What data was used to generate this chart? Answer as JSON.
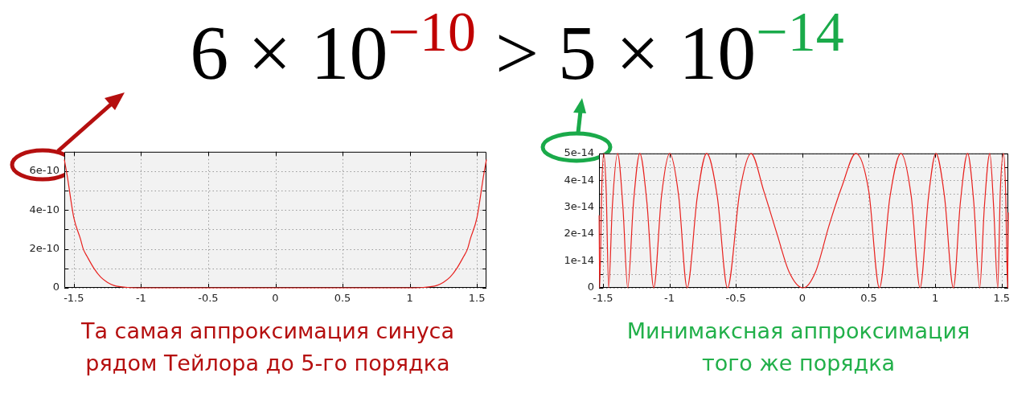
{
  "chart_data": [
    {
      "type": "line",
      "title": "6 × 10$^{−10}$ > 5 × 10$^{−14}$",
      "annotations": [
        "Та самая аппроксимация синуса рядом Тейлора до 5-го порядка"
      ],
      "series": [
        {
          "color": "#e8221f",
          "x": [
            -1.5708,
            -1.55,
            -1.5,
            -1.45,
            -1.43,
            -1.4,
            -1.35,
            -1.3,
            -1.25,
            -1.2,
            -1.1,
            -1.0,
            0,
            1.0,
            1.1,
            1.2,
            1.25,
            1.3,
            1.35,
            1.4,
            1.43,
            1.45,
            1.5,
            1.55,
            1.5708
          ],
          "values": [
            6.6e-10,
            5.8e-10,
            3.6e-10,
            2.5e-10,
            2e-10,
            1.6e-10,
            1e-10,
            5.5e-11,
            2.8e-11,
            1.2e-11,
            2e-12,
            0,
            0,
            0,
            2e-12,
            1.2e-11,
            2.8e-11,
            5.5e-11,
            1e-10,
            1.6e-10,
            2e-10,
            2.5e-10,
            3.6e-10,
            5.8e-10,
            6.6e-10
          ]
        }
      ],
      "xlim": [
        -1.5708,
        1.5708
      ],
      "xticks": [
        -1.5,
        -1,
        -0.5,
        0,
        0.5,
        1,
        1.5
      ],
      "ylim": [
        0,
        7e-10
      ],
      "yticks": [
        0,
        {
          "value": 1e-10,
          "label": null
        },
        2e-10,
        {
          "value": 3e-10,
          "label": null
        },
        4e-10,
        {
          "value": 5e-10,
          "label": null
        },
        6e-10
      ],
      "grid": true,
      "marker": "none",
      "line_style": "solid"
    },
    {
      "type": "line",
      "annotations": [
        "Минимаксная аппроксимация того же порядка"
      ],
      "series": [
        {
          "color": "#e8221f",
          "x": [
            -1.529,
            -1.525,
            -1.51,
            -1.494,
            -1.476,
            -1.457,
            -1.43,
            -1.39,
            -1.35,
            -1.314,
            -1.27,
            -1.223,
            -1.17,
            -1.118,
            -1.06,
            -0.998,
            -0.93,
            -0.867,
            -0.79,
            -0.72,
            -0.64,
            -0.563,
            -0.47,
            -0.386,
            -0.29,
            -0.19,
            -0.1,
            0.006,
            0.1,
            0.2,
            0.3,
            0.403,
            0.5,
            0.58,
            0.66,
            0.742,
            0.82,
            0.886,
            0.95,
            1.005,
            1.07,
            1.137,
            1.19,
            1.244,
            1.29,
            1.335,
            1.37,
            1.411,
            1.44,
            1.471,
            1.49,
            1.514,
            1.53,
            1.545,
            1.55
          ],
          "values": [
            2.7e-14,
            0,
            3.6e-14,
            5e-14,
            3.6e-14,
            0,
            3e-14,
            5e-14,
            3e-14,
            0,
            3.2e-14,
            5e-14,
            3.2e-14,
            0,
            3.4e-14,
            5e-14,
            3.4e-14,
            0,
            3.4e-14,
            5e-14,
            3.4e-14,
            0,
            3.6e-14,
            5e-14,
            3.6e-14,
            2e-14,
            6e-15,
            0,
            6e-15,
            2.3e-14,
            3.8e-14,
            5e-14,
            3.6e-14,
            0,
            3.4e-14,
            5e-14,
            3.4e-14,
            0,
            3.4e-14,
            5e-14,
            3.4e-14,
            0,
            3.2e-14,
            5e-14,
            3.2e-14,
            0,
            3e-14,
            5e-14,
            3e-14,
            0,
            3.6e-14,
            5e-14,
            3.6e-14,
            0,
            2.8e-14
          ]
        }
      ],
      "xlim": [
        -1.53,
        1.55
      ],
      "xticks": [
        -1.5,
        -1,
        -0.5,
        0,
        0.5,
        1,
        1.5
      ],
      "ylim": [
        0,
        5e-14
      ],
      "yticks": [
        0,
        {
          "value": 5e-15,
          "label": null
        },
        1e-14,
        {
          "value": 1.5e-14,
          "label": null
        },
        2e-14,
        {
          "value": 2.5e-14,
          "label": null
        },
        3e-14,
        {
          "value": 3.5e-14,
          "label": null
        },
        4e-14,
        {
          "value": 4.5e-14,
          "label": null
        },
        5e-14
      ],
      "grid": true,
      "marker": "none",
      "line_style": "solid"
    }
  ]
}
